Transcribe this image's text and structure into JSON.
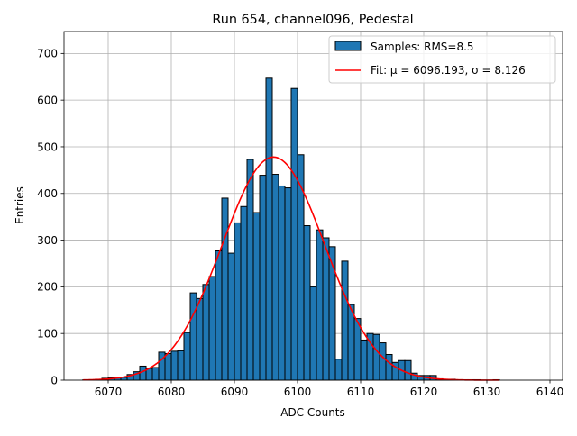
{
  "chart_data": {
    "type": "bar",
    "title": "Run 654, channel096, Pedestal",
    "xlabel": "ADC Counts",
    "ylabel": "Entries",
    "xlim": [
      6063,
      6142
    ],
    "ylim": [
      0,
      747
    ],
    "xticks": [
      6070,
      6080,
      6090,
      6100,
      6110,
      6120,
      6130,
      6140
    ],
    "yticks": [
      0,
      100,
      200,
      300,
      400,
      500,
      600,
      700
    ],
    "grid": true,
    "legend_position": "upper right",
    "bar_color": "#1f77b4",
    "edge_color": "#000000",
    "fit_color": "#ff0000",
    "bin_width": 1,
    "series": [
      {
        "name": "Samples: RMS=8.5",
        "kind": "histogram",
        "x": [
          6066,
          6067,
          6068,
          6069,
          6070,
          6071,
          6072,
          6073,
          6074,
          6075,
          6076,
          6077,
          6078,
          6079,
          6080,
          6081,
          6082,
          6083,
          6084,
          6085,
          6086,
          6087,
          6088,
          6089,
          6090,
          6091,
          6092,
          6093,
          6094,
          6095,
          6096,
          6097,
          6098,
          6099,
          6100,
          6101,
          6102,
          6103,
          6104,
          6105,
          6106,
          6107,
          6108,
          6109,
          6110,
          6111,
          6112,
          6113,
          6114,
          6115,
          6116,
          6117,
          6118,
          6119,
          6120,
          6121,
          6122,
          6123,
          6124,
          6125,
          6126,
          6127,
          6128,
          6129,
          6130,
          6131
        ],
        "values": [
          1,
          1,
          2,
          4,
          5,
          5,
          6,
          12,
          18,
          30,
          25,
          27,
          60,
          57,
          62,
          63,
          102,
          187,
          175,
          205,
          222,
          277,
          390,
          272,
          337,
          372,
          473,
          359,
          439,
          647,
          441,
          416,
          412,
          625,
          483,
          331,
          200,
          322,
          305,
          286,
          45,
          255,
          162,
          132,
          86,
          100,
          98,
          80,
          55,
          38,
          42,
          42,
          15,
          10,
          10,
          10,
          3,
          2,
          2,
          1,
          1,
          1,
          1,
          0,
          0,
          1
        ]
      },
      {
        "name": "Fit: μ = 6096.193, σ = 8.126",
        "kind": "gaussian_fit",
        "mu": 6096.193,
        "sigma": 8.126,
        "amplitude": 478,
        "x_range": [
          6066,
          6132
        ]
      }
    ]
  }
}
